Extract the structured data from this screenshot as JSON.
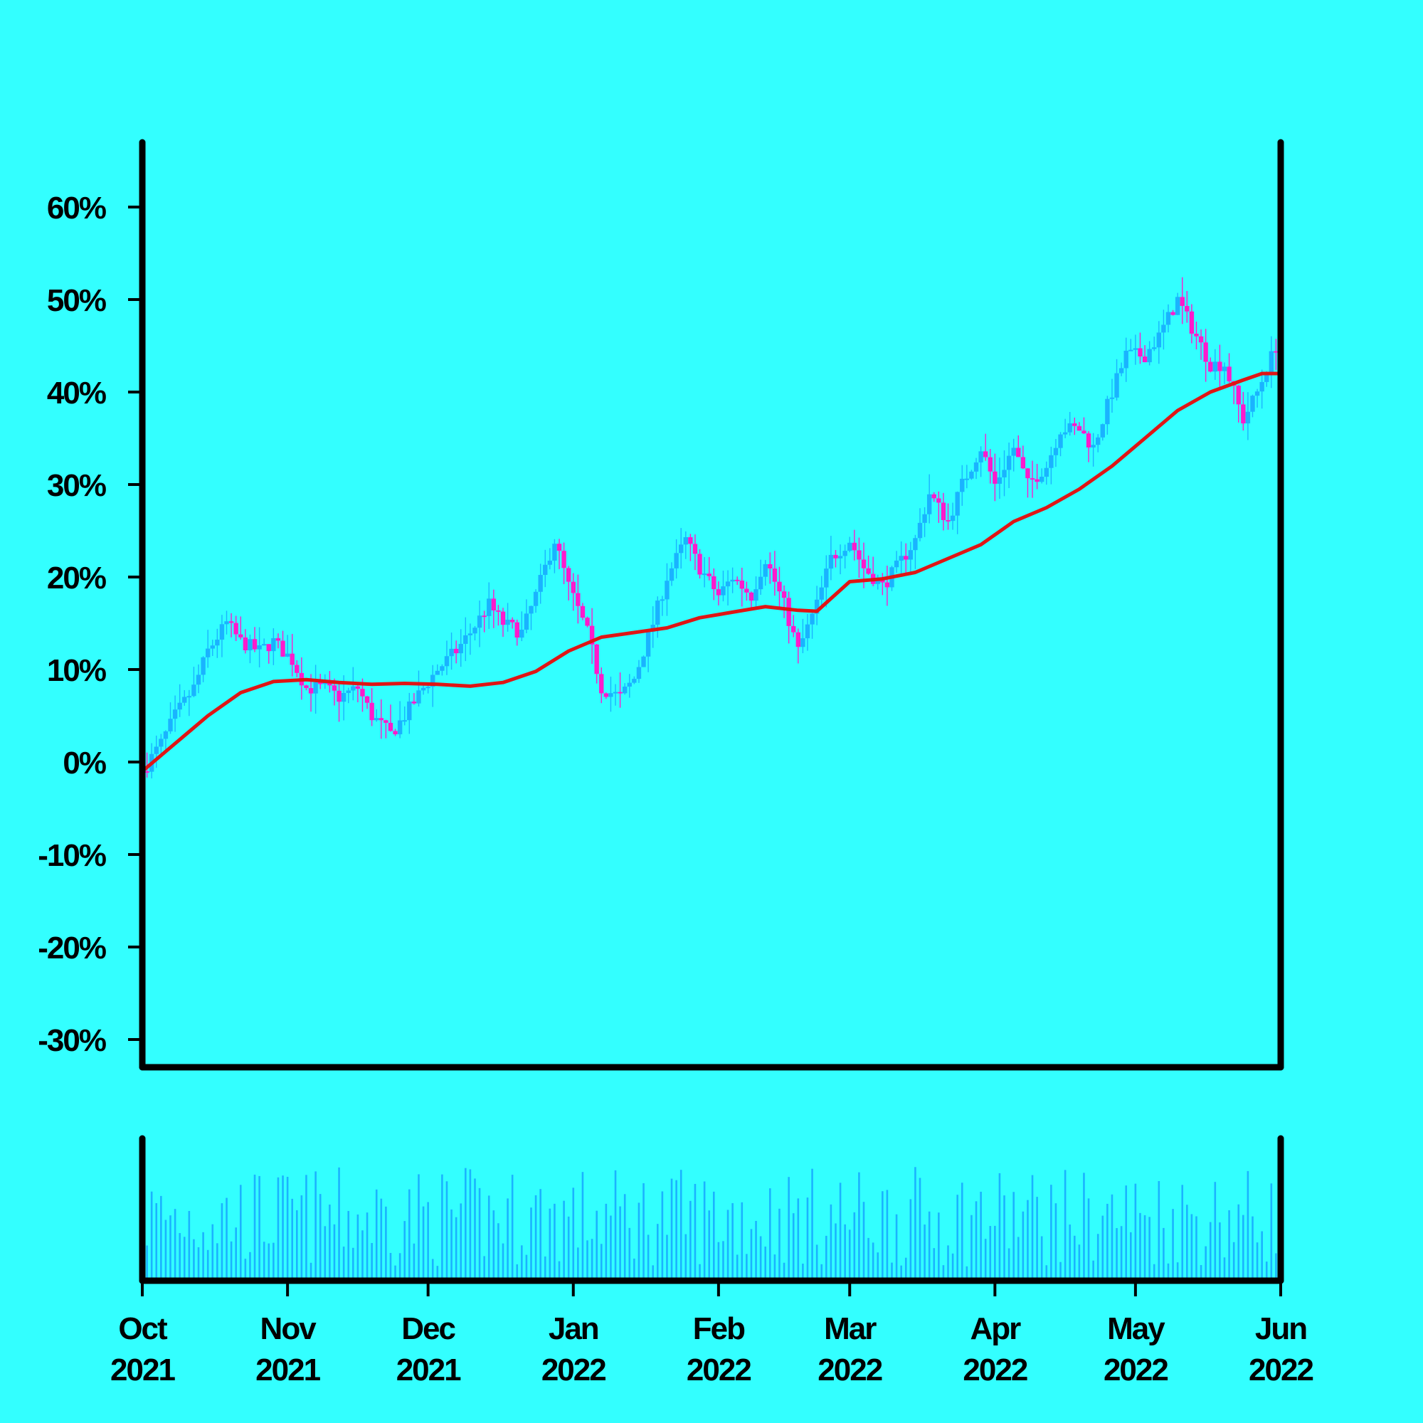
{
  "chart_data": {
    "type": "candlestick",
    "y_unit": "%",
    "ylim": [
      -33,
      67
    ],
    "y_ticks": [
      {
        "value": 60,
        "label": "60%"
      },
      {
        "value": 50,
        "label": "50%"
      },
      {
        "value": 40,
        "label": "40%"
      },
      {
        "value": 30,
        "label": "30%"
      },
      {
        "value": 20,
        "label": "20%"
      },
      {
        "value": 10,
        "label": "10%"
      },
      {
        "value": 0,
        "label": "0%"
      },
      {
        "value": -10,
        "label": "-10%"
      },
      {
        "value": -20,
        "label": "-20%"
      },
      {
        "value": -30,
        "label": "-30%"
      }
    ],
    "x_range": [
      "2021-10-01",
      "2022-06-01"
    ],
    "x_ticks": [
      {
        "date": "2021-10-01",
        "month": "Oct",
        "year": "2021"
      },
      {
        "date": "2021-11-01",
        "month": "Nov",
        "year": "2021"
      },
      {
        "date": "2021-12-01",
        "month": "Dec",
        "year": "2021"
      },
      {
        "date": "2022-01-01",
        "month": "Jan",
        "year": "2022"
      },
      {
        "date": "2022-02-01",
        "month": "Feb",
        "year": "2022"
      },
      {
        "date": "2022-03-01",
        "month": "Mar",
        "year": "2022"
      },
      {
        "date": "2022-04-01",
        "month": "Apr",
        "year": "2022"
      },
      {
        "date": "2022-05-01",
        "month": "May",
        "year": "2022"
      },
      {
        "date": "2022-06-01",
        "month": "Jun",
        "year": "2022"
      }
    ],
    "price_close_path": [
      [
        "2021-10-01",
        -1
      ],
      [
        "2021-10-05",
        2
      ],
      [
        "2021-10-08",
        5
      ],
      [
        "2021-10-12",
        8
      ],
      [
        "2021-10-15",
        12
      ],
      [
        "2021-10-19",
        15
      ],
      [
        "2021-10-22",
        13
      ],
      [
        "2021-10-26",
        12
      ],
      [
        "2021-10-29",
        13
      ],
      [
        "2021-11-02",
        11
      ],
      [
        "2021-11-05",
        8
      ],
      [
        "2021-11-09",
        8
      ],
      [
        "2021-11-12",
        7
      ],
      [
        "2021-11-16",
        8
      ],
      [
        "2021-11-19",
        5
      ],
      [
        "2021-11-23",
        3
      ],
      [
        "2021-11-26",
        5
      ],
      [
        "2021-11-30",
        8
      ],
      [
        "2021-12-03",
        10
      ],
      [
        "2021-12-07",
        12
      ],
      [
        "2021-12-10",
        14
      ],
      [
        "2021-12-14",
        17
      ],
      [
        "2021-12-17",
        15
      ],
      [
        "2021-12-21",
        14
      ],
      [
        "2021-12-24",
        18
      ],
      [
        "2021-12-28",
        24
      ],
      [
        "2021-12-31",
        19
      ],
      [
        "2022-01-04",
        14
      ],
      [
        "2022-01-07",
        8
      ],
      [
        "2022-01-11",
        7
      ],
      [
        "2022-01-14",
        9
      ],
      [
        "2022-01-18",
        15
      ],
      [
        "2022-01-21",
        20
      ],
      [
        "2022-01-25",
        24
      ],
      [
        "2022-01-28",
        21
      ],
      [
        "2022-02-01",
        18
      ],
      [
        "2022-02-04",
        20
      ],
      [
        "2022-02-08",
        18
      ],
      [
        "2022-02-11",
        22
      ],
      [
        "2022-02-15",
        17
      ],
      [
        "2022-02-18",
        12
      ],
      [
        "2022-02-22",
        17
      ],
      [
        "2022-02-25",
        22
      ],
      [
        "2022-03-01",
        24
      ],
      [
        "2022-03-04",
        21
      ],
      [
        "2022-03-08",
        19
      ],
      [
        "2022-03-11",
        21
      ],
      [
        "2022-03-15",
        24
      ],
      [
        "2022-03-18",
        29
      ],
      [
        "2022-03-22",
        26
      ],
      [
        "2022-03-25",
        30
      ],
      [
        "2022-03-29",
        34
      ],
      [
        "2022-04-01",
        30
      ],
      [
        "2022-04-05",
        34
      ],
      [
        "2022-04-08",
        30
      ],
      [
        "2022-04-12",
        32
      ],
      [
        "2022-04-15",
        36
      ],
      [
        "2022-04-19",
        36
      ],
      [
        "2022-04-22",
        34
      ],
      [
        "2022-04-26",
        40
      ],
      [
        "2022-04-29",
        44
      ],
      [
        "2022-05-03",
        44
      ],
      [
        "2022-05-06",
        46
      ],
      [
        "2022-05-10",
        50
      ],
      [
        "2022-05-13",
        47
      ],
      [
        "2022-05-17",
        43
      ],
      [
        "2022-05-20",
        43
      ],
      [
        "2022-05-24",
        37
      ],
      [
        "2022-05-27",
        40
      ],
      [
        "2022-05-31",
        45
      ],
      [
        "2022-06-01",
        35
      ]
    ],
    "moving_average": [
      [
        "2021-10-01",
        -1
      ],
      [
        "2021-10-08",
        2
      ],
      [
        "2021-10-15",
        5
      ],
      [
        "2021-10-22",
        7.5
      ],
      [
        "2021-10-29",
        8.7
      ],
      [
        "2021-11-05",
        8.9
      ],
      [
        "2021-11-12",
        8.6
      ],
      [
        "2021-11-19",
        8.4
      ],
      [
        "2021-11-26",
        8.5
      ],
      [
        "2021-12-03",
        8.4
      ],
      [
        "2021-12-10",
        8.2
      ],
      [
        "2021-12-17",
        8.6
      ],
      [
        "2021-12-24",
        9.8
      ],
      [
        "2021-12-31",
        12
      ],
      [
        "2022-01-07",
        13.5
      ],
      [
        "2022-01-14",
        14
      ],
      [
        "2022-01-21",
        14.5
      ],
      [
        "2022-01-28",
        15.6
      ],
      [
        "2022-02-04",
        16.2
      ],
      [
        "2022-02-11",
        16.8
      ],
      [
        "2022-02-18",
        16.4
      ],
      [
        "2022-02-22",
        16.3
      ],
      [
        "2022-03-01",
        19.5
      ],
      [
        "2022-03-08",
        19.8
      ],
      [
        "2022-03-15",
        20.5
      ],
      [
        "2022-03-22",
        22
      ],
      [
        "2022-03-29",
        23.5
      ],
      [
        "2022-04-05",
        26
      ],
      [
        "2022-04-12",
        27.5
      ],
      [
        "2022-04-19",
        29.5
      ],
      [
        "2022-04-26",
        32
      ],
      [
        "2022-05-03",
        35
      ],
      [
        "2022-05-10",
        38
      ],
      [
        "2022-05-17",
        40
      ],
      [
        "2022-05-24",
        41.3
      ],
      [
        "2022-05-28",
        42
      ],
      [
        "2022-06-01",
        42
      ]
    ],
    "colors": {
      "background": "#33FFFF",
      "up_candle": "#1AB3FF",
      "down_candle": "#FF1ACC",
      "moving_average": "#E01515",
      "volume": "#1AB3FF",
      "axes": "#000000"
    },
    "volume_panel": true,
    "volume_labels": false
  }
}
